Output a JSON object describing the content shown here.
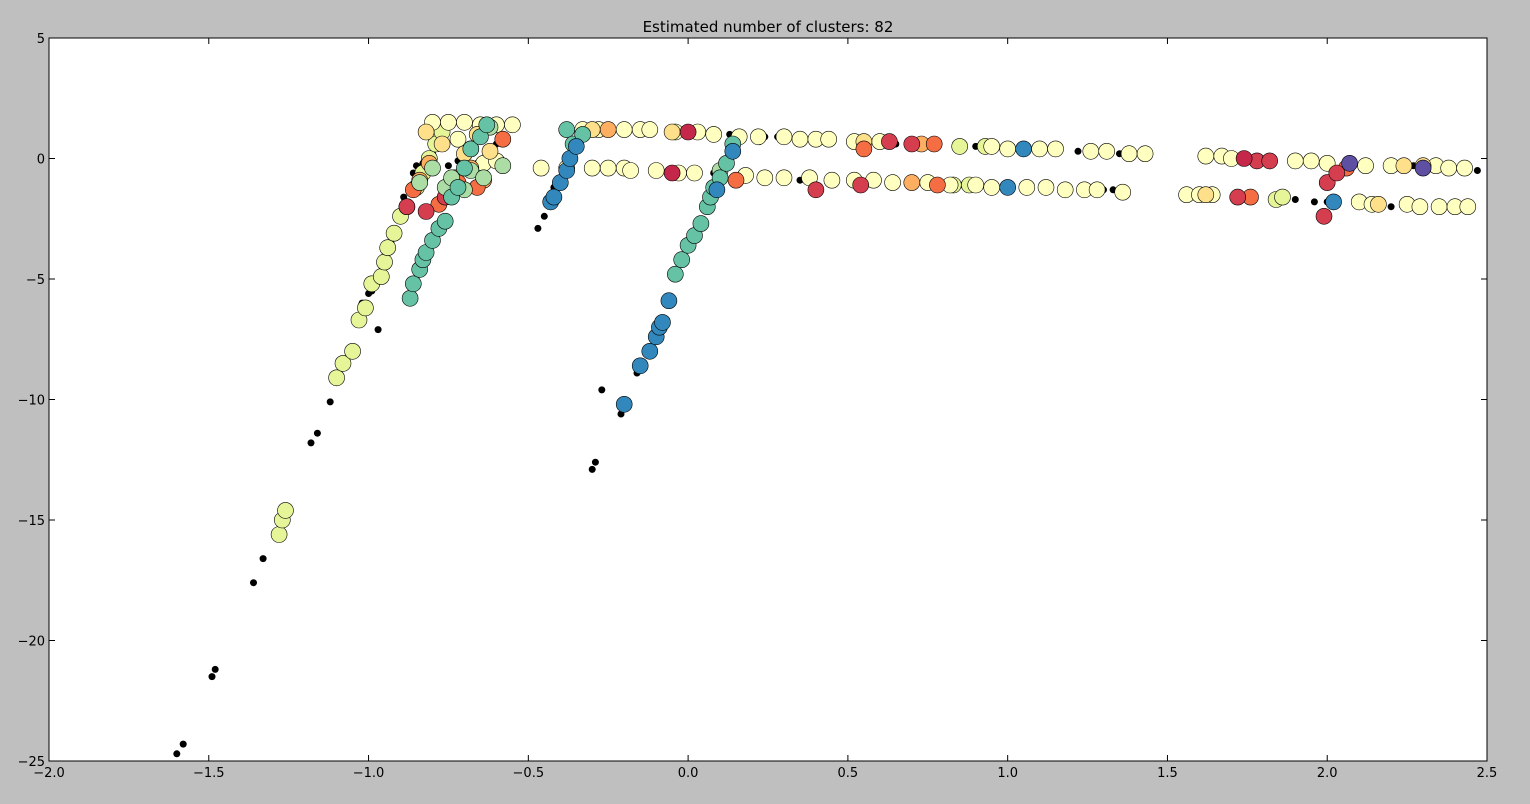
{
  "chart_data": {
    "type": "scatter",
    "title": "Estimated number of clusters: 82",
    "xlabel": "",
    "ylabel": "",
    "xlim": [
      -2.0,
      2.5
    ],
    "ylim": [
      -25,
      5
    ],
    "xticks": [
      -2.0,
      -1.5,
      -1.0,
      -0.5,
      0.0,
      0.5,
      1.0,
      1.5,
      2.0,
      2.5
    ],
    "xtick_labels": [
      "−2.0",
      "−1.5",
      "−1.0",
      "−0.5",
      "0.0",
      "0.5",
      "1.0",
      "1.5",
      "2.0",
      "2.5"
    ],
    "yticks": [
      -25,
      -20,
      -15,
      -10,
      -5,
      0,
      5
    ],
    "ytick_labels": [
      "−25",
      "−20",
      "−15",
      "−10",
      "−5",
      "0",
      "5"
    ],
    "grid": false,
    "legend": "none",
    "colors": {
      "noise": "#000000",
      "red": "#d53e4f",
      "crimson": "#c4274a",
      "orange": "#f46d43",
      "light_orange": "#fdae61",
      "pale_yellow": "#fee08b",
      "cream": "#ffffbf",
      "pale_green": "#e6f598",
      "light_green": "#abdda4",
      "teal": "#66c2a5",
      "blue": "#3288bd",
      "purple": "#5e4fa2"
    },
    "series": [
      {
        "role": "noise",
        "color": "#000000",
        "points": [
          [
            -1.6,
            -24.7
          ],
          [
            -1.58,
            -24.3
          ],
          [
            -1.48,
            -21.2
          ],
          [
            -1.49,
            -21.5
          ],
          [
            -1.36,
            -17.6
          ],
          [
            -1.33,
            -16.6
          ],
          [
            -1.18,
            -11.8
          ],
          [
            -1.16,
            -11.4
          ],
          [
            -1.12,
            -10.1
          ],
          [
            -1.1,
            -9.3
          ],
          [
            -1.07,
            -8.6
          ],
          [
            -1.0,
            -5.6
          ],
          [
            -0.99,
            -5.5
          ],
          [
            -1.02,
            -6.0
          ],
          [
            -0.97,
            -7.1
          ],
          [
            -0.92,
            -3.3
          ],
          [
            -0.93,
            -3.5
          ],
          [
            -0.89,
            -1.6
          ],
          [
            -0.87,
            -1.3
          ],
          [
            -0.86,
            -0.6
          ],
          [
            -0.85,
            -0.3
          ],
          [
            -0.83,
            -0.2
          ],
          [
            -0.8,
            0.2
          ],
          [
            -0.79,
            1.6
          ],
          [
            -0.77,
            1.4
          ],
          [
            -0.75,
            -0.3
          ],
          [
            -0.74,
            1.5
          ],
          [
            -0.72,
            -0.1
          ],
          [
            -0.7,
            1.4
          ],
          [
            -0.69,
            -0.4
          ],
          [
            -0.66,
            -0.2
          ],
          [
            -0.62,
            -0.2
          ],
          [
            -0.6,
            0.6
          ],
          [
            -0.56,
            1.4
          ],
          [
            -0.47,
            -2.9
          ],
          [
            -0.45,
            -2.4
          ],
          [
            -0.42,
            -1.2
          ],
          [
            -0.4,
            -0.8
          ],
          [
            -0.29,
            -12.6
          ],
          [
            -0.3,
            -12.9
          ],
          [
            -0.27,
            -9.6
          ],
          [
            -0.21,
            -10.6
          ],
          [
            -0.16,
            -8.9
          ],
          [
            -0.13,
            -8.1
          ],
          [
            0.08,
            -0.6
          ],
          [
            0.13,
            1.0
          ],
          [
            0.24,
            0.9
          ],
          [
            0.28,
            0.9
          ],
          [
            0.35,
            -0.9
          ],
          [
            0.65,
            0.6
          ],
          [
            0.73,
            0.6
          ],
          [
            0.86,
            -1.1
          ],
          [
            0.9,
            0.5
          ],
          [
            1.06,
            0.4
          ],
          [
            1.0,
            -1.2
          ],
          [
            1.22,
            0.3
          ],
          [
            1.3,
            -1.3
          ],
          [
            1.33,
            -1.3
          ],
          [
            1.35,
            0.2
          ],
          [
            1.37,
            0.2
          ],
          [
            1.9,
            -1.7
          ],
          [
            1.96,
            -1.8
          ],
          [
            2.0,
            -1.8
          ],
          [
            2.03,
            -1.8
          ],
          [
            2.08,
            -0.2
          ],
          [
            2.2,
            -2.0
          ],
          [
            2.27,
            -0.3
          ],
          [
            2.43,
            -2.0
          ],
          [
            2.47,
            -0.5
          ]
        ]
      },
      {
        "role": "cluster",
        "color": "#e6f598",
        "points": [
          [
            -1.28,
            -15.6
          ],
          [
            -1.27,
            -15.0
          ],
          [
            -1.26,
            -14.6
          ],
          [
            -1.1,
            -9.1
          ],
          [
            -1.08,
            -8.5
          ],
          [
            -1.05,
            -8.0
          ],
          [
            -1.03,
            -6.7
          ],
          [
            -1.01,
            -6.2
          ],
          [
            -0.99,
            -5.2
          ],
          [
            -0.96,
            -4.9
          ],
          [
            -0.95,
            -4.3
          ],
          [
            -0.94,
            -3.7
          ],
          [
            -0.92,
            -3.1
          ],
          [
            -0.9,
            -2.4
          ],
          [
            -0.88,
            -2.0
          ],
          [
            -0.85,
            -1.2
          ],
          [
            -0.83,
            -0.6
          ],
          [
            -0.81,
            0.0
          ],
          [
            -0.79,
            0.6
          ],
          [
            -0.77,
            1.1
          ],
          [
            0.85,
            0.5
          ],
          [
            0.93,
            0.5
          ],
          [
            0.83,
            -1.1
          ],
          [
            0.88,
            -1.1
          ],
          [
            1.84,
            -1.7
          ],
          [
            1.86,
            -1.6
          ]
        ]
      },
      {
        "role": "cluster",
        "color": "#ffffbf",
        "points": [
          [
            -0.8,
            1.5
          ],
          [
            -0.75,
            1.5
          ],
          [
            -0.7,
            1.5
          ],
          [
            -0.65,
            1.4
          ],
          [
            -0.6,
            1.4
          ],
          [
            -0.55,
            1.4
          ],
          [
            -0.72,
            0.8
          ],
          [
            -0.68,
            0.4
          ],
          [
            -0.64,
            -0.2
          ],
          [
            -0.6,
            -0.1
          ],
          [
            -0.33,
            1.2
          ],
          [
            -0.28,
            1.2
          ],
          [
            -0.2,
            1.2
          ],
          [
            -0.15,
            1.2
          ],
          [
            -0.12,
            1.2
          ],
          [
            -0.04,
            1.1
          ],
          [
            0.03,
            1.1
          ],
          [
            0.08,
            1.0
          ],
          [
            0.16,
            0.9
          ],
          [
            0.22,
            0.9
          ],
          [
            0.3,
            0.9
          ],
          [
            0.35,
            0.8
          ],
          [
            0.4,
            0.8
          ],
          [
            0.44,
            0.8
          ],
          [
            -0.46,
            -0.4
          ],
          [
            -0.38,
            -0.4
          ],
          [
            -0.3,
            -0.4
          ],
          [
            -0.25,
            -0.4
          ],
          [
            -0.2,
            -0.4
          ],
          [
            -0.18,
            -0.5
          ],
          [
            -0.1,
            -0.5
          ],
          [
            -0.03,
            -0.6
          ],
          [
            0.02,
            -0.6
          ],
          [
            0.18,
            -0.7
          ],
          [
            0.24,
            -0.8
          ],
          [
            0.3,
            -0.8
          ],
          [
            0.38,
            -0.8
          ],
          [
            0.52,
            0.7
          ],
          [
            0.6,
            0.7
          ],
          [
            0.45,
            -0.9
          ],
          [
            0.52,
            -0.9
          ],
          [
            0.58,
            -0.9
          ],
          [
            0.64,
            -1.0
          ],
          [
            0.75,
            -1.0
          ],
          [
            0.82,
            -1.1
          ],
          [
            0.95,
            0.5
          ],
          [
            1.0,
            0.4
          ],
          [
            1.1,
            0.4
          ],
          [
            1.15,
            0.4
          ],
          [
            1.26,
            0.3
          ],
          [
            1.31,
            0.3
          ],
          [
            1.38,
            0.2
          ],
          [
            1.43,
            0.2
          ],
          [
            0.9,
            -1.1
          ],
          [
            0.95,
            -1.2
          ],
          [
            1.06,
            -1.2
          ],
          [
            1.12,
            -1.2
          ],
          [
            1.18,
            -1.3
          ],
          [
            1.24,
            -1.3
          ],
          [
            1.28,
            -1.3
          ],
          [
            1.36,
            -1.4
          ],
          [
            1.56,
            -1.5
          ],
          [
            1.6,
            -1.5
          ],
          [
            1.64,
            -1.5
          ],
          [
            1.62,
            0.1
          ],
          [
            1.67,
            0.1
          ],
          [
            1.7,
            0.0
          ],
          [
            1.9,
            -0.1
          ],
          [
            1.95,
            -0.1
          ],
          [
            2.0,
            -0.2
          ],
          [
            2.12,
            -0.3
          ],
          [
            2.2,
            -0.3
          ],
          [
            2.34,
            -0.3
          ],
          [
            2.38,
            -0.4
          ],
          [
            2.1,
            -1.8
          ],
          [
            2.14,
            -1.9
          ],
          [
            2.25,
            -1.9
          ],
          [
            2.29,
            -2.0
          ],
          [
            2.35,
            -2.0
          ],
          [
            2.4,
            -2.0
          ],
          [
            2.44,
            -2.0
          ],
          [
            2.43,
            -0.4
          ]
        ]
      },
      {
        "role": "cluster",
        "color": "#fee08b",
        "points": [
          [
            -0.82,
            1.1
          ],
          [
            -0.77,
            0.6
          ],
          [
            -0.7,
            0.2
          ],
          [
            -0.66,
            1.0
          ],
          [
            -0.62,
            0.3
          ],
          [
            -0.3,
            1.2
          ],
          [
            -0.05,
            1.1
          ],
          [
            0.55,
            0.7
          ],
          [
            1.62,
            -1.5
          ],
          [
            2.16,
            -1.9
          ],
          [
            2.24,
            -0.3
          ],
          [
            2.3,
            -0.3
          ]
        ]
      },
      {
        "role": "cluster",
        "color": "#fdae61",
        "points": [
          [
            -0.84,
            -0.9
          ],
          [
            -0.81,
            -0.2
          ],
          [
            -0.75,
            -1.5
          ],
          [
            -0.73,
            -0.8
          ],
          [
            -0.68,
            -0.4
          ],
          [
            -0.64,
            -0.9
          ],
          [
            -0.25,
            1.2
          ],
          [
            0.7,
            -1.0
          ],
          [
            0.73,
            0.6
          ]
        ]
      },
      {
        "role": "cluster",
        "color": "#f46d43",
        "points": [
          [
            -0.86,
            -1.3
          ],
          [
            -0.78,
            -1.9
          ],
          [
            -0.72,
            -1.0
          ],
          [
            -0.66,
            -1.2
          ],
          [
            -0.58,
            0.8
          ],
          [
            0.15,
            -0.9
          ],
          [
            0.55,
            0.4
          ],
          [
            0.77,
            0.6
          ],
          [
            0.78,
            -1.1
          ],
          [
            1.76,
            -1.6
          ],
          [
            2.06,
            -0.4
          ]
        ]
      },
      {
        "role": "cluster",
        "color": "#d53e4f",
        "points": [
          [
            -0.88,
            -2.0
          ],
          [
            -0.82,
            -2.2
          ],
          [
            -0.76,
            -1.6
          ],
          [
            0.4,
            -1.3
          ],
          [
            0.54,
            -1.1
          ],
          [
            0.63,
            0.7
          ],
          [
            0.7,
            0.6
          ],
          [
            1.72,
            -1.6
          ],
          [
            1.78,
            -0.1
          ],
          [
            1.82,
            -0.1
          ],
          [
            1.99,
            -2.4
          ],
          [
            2.0,
            -1.0
          ],
          [
            2.03,
            -0.6
          ]
        ]
      },
      {
        "role": "cluster",
        "color": "#c4274a",
        "points": [
          [
            -0.05,
            -0.6
          ],
          [
            0.0,
            1.1
          ],
          [
            1.74,
            0.0
          ]
        ]
      },
      {
        "role": "cluster",
        "color": "#abdda4",
        "points": [
          [
            -0.84,
            -1.0
          ],
          [
            -0.8,
            -0.4
          ],
          [
            -0.76,
            -1.2
          ],
          [
            -0.74,
            -0.8
          ],
          [
            -0.7,
            -1.3
          ],
          [
            -0.68,
            -0.5
          ],
          [
            -0.64,
            -0.8
          ],
          [
            -0.62,
            1.3
          ],
          [
            -0.58,
            -0.3
          ],
          [
            0.1,
            -0.5
          ]
        ]
      },
      {
        "role": "cluster",
        "color": "#66c2a5",
        "points": [
          [
            -0.87,
            -5.8
          ],
          [
            -0.86,
            -5.2
          ],
          [
            -0.84,
            -4.6
          ],
          [
            -0.83,
            -4.2
          ],
          [
            -0.82,
            -3.9
          ],
          [
            -0.8,
            -3.4
          ],
          [
            -0.78,
            -2.9
          ],
          [
            -0.76,
            -2.6
          ],
          [
            -0.74,
            -1.6
          ],
          [
            -0.72,
            -1.2
          ],
          [
            -0.7,
            -0.4
          ],
          [
            -0.68,
            0.4
          ],
          [
            -0.65,
            0.9
          ],
          [
            -0.63,
            1.4
          ],
          [
            -0.38,
            1.2
          ],
          [
            -0.36,
            0.6
          ],
          [
            -0.33,
            1.0
          ],
          [
            -0.04,
            -4.8
          ],
          [
            -0.02,
            -4.2
          ],
          [
            0.0,
            -3.6
          ],
          [
            0.02,
            -3.2
          ],
          [
            0.04,
            -2.7
          ],
          [
            0.06,
            -2.0
          ],
          [
            0.07,
            -1.6
          ],
          [
            0.08,
            -1.2
          ],
          [
            0.1,
            -0.8
          ],
          [
            0.12,
            -0.2
          ],
          [
            0.14,
            0.6
          ]
        ]
      },
      {
        "role": "cluster",
        "color": "#3288bd",
        "points": [
          [
            -0.43,
            -1.8
          ],
          [
            -0.42,
            -1.6
          ],
          [
            -0.4,
            -1.0
          ],
          [
            -0.38,
            -0.5
          ],
          [
            -0.37,
            0.0
          ],
          [
            -0.35,
            0.5
          ],
          [
            -0.2,
            -10.2
          ],
          [
            -0.15,
            -8.6
          ],
          [
            -0.12,
            -8.0
          ],
          [
            -0.1,
            -7.4
          ],
          [
            -0.09,
            -7.0
          ],
          [
            -0.08,
            -6.8
          ],
          [
            -0.06,
            -5.9
          ],
          [
            0.09,
            -1.3
          ],
          [
            0.14,
            0.3
          ],
          [
            1.05,
            0.4
          ],
          [
            1.0,
            -1.2
          ],
          [
            2.02,
            -1.8
          ]
        ]
      },
      {
        "role": "cluster",
        "color": "#5e4fa2",
        "points": [
          [
            2.07,
            -0.2
          ],
          [
            2.3,
            -0.4
          ]
        ]
      }
    ]
  }
}
